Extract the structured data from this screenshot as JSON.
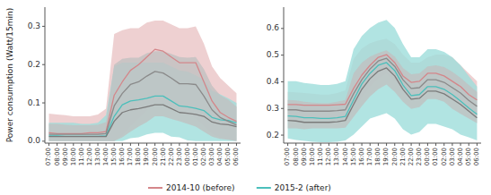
{
  "chart_data": [
    {
      "type": "line",
      "ylabel": "Power consumption (Watt/15min)",
      "legend": "bottom",
      "categories": [
        "07:00",
        "08:00",
        "09:00",
        "10:00",
        "11:00",
        "12:00",
        "13:00",
        "14:00",
        "15:00",
        "16:00",
        "17:00",
        "18:00",
        "19:00",
        "20:00",
        "21:00",
        "22:00",
        "23:00",
        "00:00",
        "01:00",
        "02:00",
        "03:00",
        "04:00",
        "05:00",
        "06:00"
      ],
      "ylim": [
        -0.005,
        0.35
      ],
      "yticks": [
        {
          "value": 0.0,
          "label": "0.0"
        },
        0.1,
        0.2,
        0.3
      ],
      "series": [
        {
          "type": "band",
          "color": "#eac4c5",
          "upper": [
            0.072,
            0.07,
            0.068,
            0.065,
            0.065,
            0.065,
            0.07,
            0.085,
            0.28,
            0.29,
            0.295,
            0.295,
            0.31,
            0.315,
            0.315,
            0.305,
            0.295,
            0.295,
            0.3,
            0.255,
            0.195,
            0.165,
            0.145,
            0.125
          ],
          "lower": [
            0.0,
            0.0,
            0.0,
            0.0,
            0.0,
            0.0,
            0.0,
            0.0,
            0.0,
            0.015,
            0.04,
            0.06,
            0.08,
            0.1,
            0.1,
            0.09,
            0.08,
            0.07,
            0.06,
            0.04,
            0.02,
            0.01,
            0.005,
            0.0
          ]
        },
        {
          "type": "band",
          "color": "#9edddb",
          "upper": [
            0.048,
            0.048,
            0.048,
            0.048,
            0.045,
            0.045,
            0.048,
            0.068,
            0.195,
            0.205,
            0.205,
            0.205,
            0.205,
            0.205,
            0.205,
            0.195,
            0.185,
            0.182,
            0.172,
            0.16,
            0.132,
            0.122,
            0.112,
            0.1
          ],
          "lower": [
            0.0,
            0.0,
            0.0,
            0.0,
            0.0,
            0.0,
            0.0,
            0.0,
            0.0,
            0.0,
            0.008,
            0.01,
            0.018,
            0.022,
            0.022,
            0.012,
            0.01,
            0.002,
            0.0,
            0.0,
            0.0,
            0.0,
            0.0,
            0.0
          ]
        },
        {
          "type": "band",
          "color": "#c0c0c0",
          "upper": [
            0.045,
            0.045,
            0.043,
            0.042,
            0.042,
            0.042,
            0.043,
            0.05,
            0.2,
            0.215,
            0.218,
            0.218,
            0.23,
            0.235,
            0.235,
            0.228,
            0.22,
            0.218,
            0.22,
            0.188,
            0.145,
            0.12,
            0.108,
            0.09
          ],
          "lower": [
            0.0,
            0.0,
            0.0,
            0.0,
            0.0,
            0.0,
            0.0,
            0.0,
            0.0,
            0.01,
            0.025,
            0.038,
            0.05,
            0.065,
            0.065,
            0.058,
            0.052,
            0.045,
            0.038,
            0.025,
            0.012,
            0.006,
            0.004,
            0.0
          ]
        },
        {
          "name": "2014-10 (before)",
          "color": "#d4868a",
          "values": [
            0.022,
            0.02,
            0.02,
            0.02,
            0.02,
            0.022,
            0.022,
            0.025,
            0.12,
            0.155,
            0.185,
            0.2,
            0.22,
            0.24,
            0.235,
            0.22,
            0.205,
            0.205,
            0.205,
            0.155,
            0.105,
            0.075,
            0.062,
            0.052
          ]
        },
        {
          "name": "2015-2 (after)",
          "color": "#4bbfbb",
          "values": [
            0.014,
            0.014,
            0.013,
            0.013,
            0.013,
            0.013,
            0.013,
            0.014,
            0.065,
            0.095,
            0.105,
            0.108,
            0.112,
            0.118,
            0.118,
            0.105,
            0.092,
            0.09,
            0.086,
            0.08,
            0.062,
            0.056,
            0.054,
            0.048
          ]
        },
        {
          "color": "#8a8a8a",
          "values": [
            0.018,
            0.018,
            0.018,
            0.018,
            0.018,
            0.018,
            0.018,
            0.02,
            0.092,
            0.125,
            0.148,
            0.155,
            0.17,
            0.182,
            0.178,
            0.165,
            0.15,
            0.15,
            0.148,
            0.118,
            0.082,
            0.062,
            0.052,
            0.042
          ]
        },
        {
          "color": "#7a7a7a",
          "values": [
            0.012,
            0.012,
            0.012,
            0.012,
            0.012,
            0.012,
            0.012,
            0.012,
            0.052,
            0.075,
            0.082,
            0.085,
            0.09,
            0.095,
            0.095,
            0.085,
            0.075,
            0.073,
            0.07,
            0.065,
            0.05,
            0.045,
            0.043,
            0.038
          ]
        }
      ]
    },
    {
      "type": "line",
      "categories": [
        "07:00",
        "08:00",
        "09:00",
        "10:00",
        "11:00",
        "12:00",
        "13:00",
        "14:00",
        "15:00",
        "16:00",
        "17:00",
        "18:00",
        "19:00",
        "20:00",
        "21:00",
        "22:00",
        "23:00",
        "00:00",
        "01:00",
        "02:00",
        "03:00",
        "04:00",
        "05:00",
        "06:00"
      ],
      "ylim": [
        0.17,
        0.68
      ],
      "yticks": [
        0.2,
        0.3,
        0.4,
        0.5,
        0.6
      ],
      "series": [
        {
          "type": "band",
          "color": "#eac4c5",
          "upper": [
            0.362,
            0.36,
            0.358,
            0.355,
            0.352,
            0.352,
            0.358,
            0.368,
            0.485,
            0.525,
            0.545,
            0.555,
            0.562,
            0.542,
            0.502,
            0.472,
            0.472,
            0.492,
            0.502,
            0.502,
            0.492,
            0.462,
            0.432,
            0.402
          ],
          "lower": [
            0.26,
            0.26,
            0.258,
            0.26,
            0.26,
            0.26,
            0.26,
            0.265,
            0.302,
            0.342,
            0.382,
            0.412,
            0.432,
            0.402,
            0.362,
            0.332,
            0.342,
            0.372,
            0.372,
            0.362,
            0.332,
            0.312,
            0.292,
            0.272
          ]
        },
        {
          "type": "band",
          "color": "#9edddb",
          "upper": [
            0.402,
            0.402,
            0.396,
            0.392,
            0.388,
            0.388,
            0.392,
            0.402,
            0.522,
            0.572,
            0.602,
            0.622,
            0.632,
            0.602,
            0.542,
            0.492,
            0.492,
            0.522,
            0.522,
            0.512,
            0.492,
            0.462,
            0.422,
            0.382
          ],
          "lower": [
            0.188,
            0.182,
            0.178,
            0.175,
            0.173,
            0.173,
            0.175,
            0.18,
            0.202,
            0.232,
            0.262,
            0.272,
            0.282,
            0.262,
            0.222,
            0.202,
            0.212,
            0.242,
            0.242,
            0.232,
            0.222,
            0.202,
            0.192,
            0.18
          ]
        },
        {
          "type": "band",
          "color": "#c0c0c0",
          "upper": [
            0.332,
            0.33,
            0.325,
            0.322,
            0.32,
            0.32,
            0.325,
            0.332,
            0.432,
            0.472,
            0.495,
            0.508,
            0.518,
            0.495,
            0.452,
            0.428,
            0.432,
            0.458,
            0.462,
            0.455,
            0.438,
            0.415,
            0.388,
            0.362
          ],
          "lower": [
            0.225,
            0.225,
            0.222,
            0.225,
            0.225,
            0.225,
            0.225,
            0.228,
            0.268,
            0.308,
            0.345,
            0.372,
            0.39,
            0.362,
            0.325,
            0.298,
            0.305,
            0.335,
            0.335,
            0.325,
            0.298,
            0.28,
            0.262,
            0.245
          ]
        },
        {
          "color": "#d4868a",
          "values": [
            0.315,
            0.315,
            0.312,
            0.312,
            0.312,
            0.312,
            0.314,
            0.316,
            0.375,
            0.425,
            0.462,
            0.492,
            0.502,
            0.472,
            0.422,
            0.398,
            0.402,
            0.432,
            0.432,
            0.422,
            0.402,
            0.382,
            0.352,
            0.332
          ]
        },
        {
          "color": "#4bbfbb",
          "values": [
            0.272,
            0.27,
            0.265,
            0.265,
            0.263,
            0.263,
            0.265,
            0.27,
            0.332,
            0.392,
            0.432,
            0.462,
            0.472,
            0.442,
            0.388,
            0.348,
            0.352,
            0.382,
            0.382,
            0.372,
            0.352,
            0.328,
            0.302,
            0.278
          ]
        },
        {
          "color": "#8a8a8a",
          "values": [
            0.295,
            0.295,
            0.29,
            0.29,
            0.29,
            0.29,
            0.292,
            0.295,
            0.355,
            0.408,
            0.448,
            0.478,
            0.488,
            0.458,
            0.408,
            0.375,
            0.378,
            0.408,
            0.408,
            0.398,
            0.378,
            0.358,
            0.33,
            0.308
          ]
        },
        {
          "color": "#7a7a7a",
          "values": [
            0.255,
            0.253,
            0.248,
            0.248,
            0.248,
            0.248,
            0.25,
            0.255,
            0.315,
            0.372,
            0.412,
            0.44,
            0.452,
            0.422,
            0.372,
            0.335,
            0.338,
            0.365,
            0.365,
            0.355,
            0.335,
            0.315,
            0.29,
            0.265
          ]
        }
      ]
    }
  ]
}
